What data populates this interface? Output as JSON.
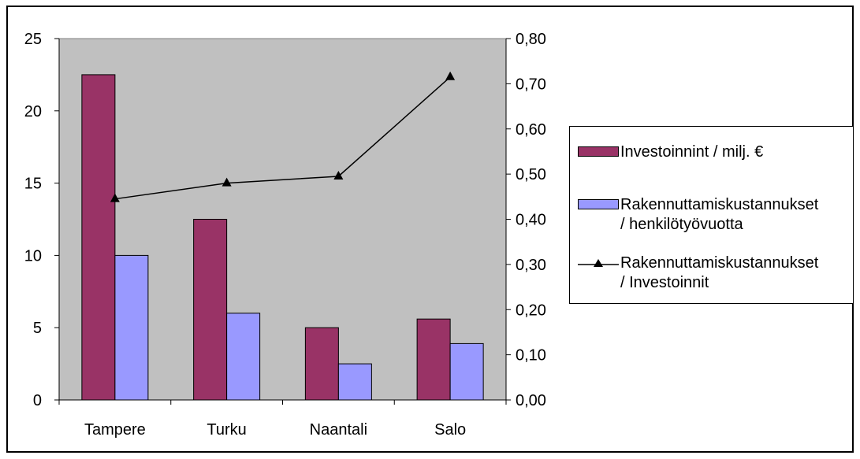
{
  "chart_data": {
    "type": "bar",
    "categories": [
      "Tampere",
      "Turku",
      "Naantali",
      "Salo"
    ],
    "series": [
      {
        "name": "Investoinnint / milj. €",
        "type": "bar",
        "axis": "left",
        "color": "#993366",
        "values": [
          22.5,
          12.5,
          5.0,
          5.6
        ]
      },
      {
        "name": "Rakennuttamiskustannukset\n/ henkilötyövuotta",
        "type": "bar",
        "axis": "left",
        "color": "#9999ff",
        "values": [
          10.0,
          6.0,
          2.5,
          3.9
        ]
      },
      {
        "name": "Rakennuttamiskustannukset\n/ Investoinnit",
        "type": "line",
        "axis": "right",
        "color": "#000000",
        "marker": "triangle",
        "values": [
          0.445,
          0.48,
          0.495,
          0.715
        ]
      }
    ],
    "y_left": {
      "ylim": [
        0,
        25
      ],
      "ticks": [
        "0",
        "5",
        "10",
        "15",
        "20",
        "25"
      ],
      "tick_values": [
        0,
        5,
        10,
        15,
        20,
        25
      ]
    },
    "y_right": {
      "ylim": [
        0,
        0.8
      ],
      "ticks": [
        "0,00",
        "0,10",
        "0,20",
        "0,30",
        "0,40",
        "0,50",
        "0,60",
        "0,70",
        "0,80"
      ],
      "tick_values": [
        0,
        0.1,
        0.2,
        0.3,
        0.4,
        0.5,
        0.6,
        0.7,
        0.8
      ]
    },
    "plot_background": "#c0c0c0",
    "grid": false,
    "legend_position": "right"
  }
}
